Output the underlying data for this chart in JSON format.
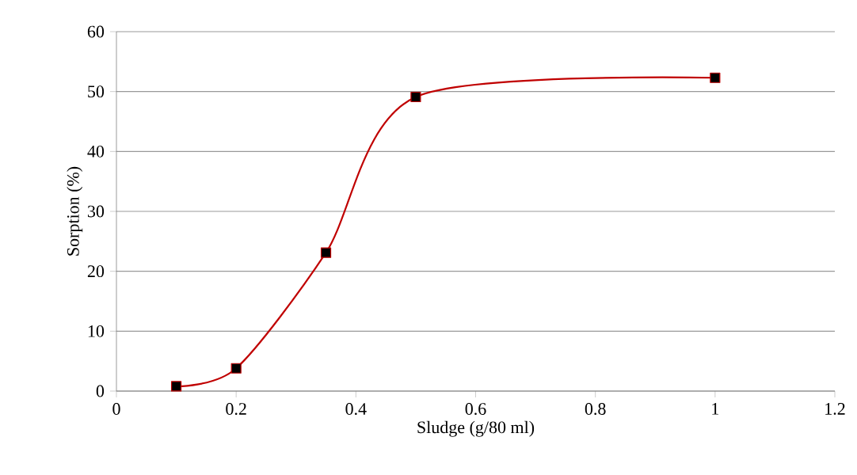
{
  "chart_data": {
    "type": "line",
    "xlabel": "Sludge (g/80 ml)",
    "ylabel": "Sorption (%)",
    "x": [
      0.1,
      0.2,
      0.35,
      0.5,
      1
    ],
    "series": [
      {
        "color": "#c00000",
        "values": [
          0.8,
          3.8,
          23.1,
          49.1,
          52.3
        ]
      }
    ],
    "xlim": [
      0,
      1.2
    ],
    "ylim": [
      0,
      60
    ],
    "xticks": [
      0,
      0.2,
      0.4,
      0.6,
      0.8,
      1,
      1.2
    ],
    "yticks": [
      0,
      10,
      20,
      30,
      40,
      50,
      60
    ],
    "grid": "y",
    "marker": "square",
    "line_style": "solid"
  }
}
